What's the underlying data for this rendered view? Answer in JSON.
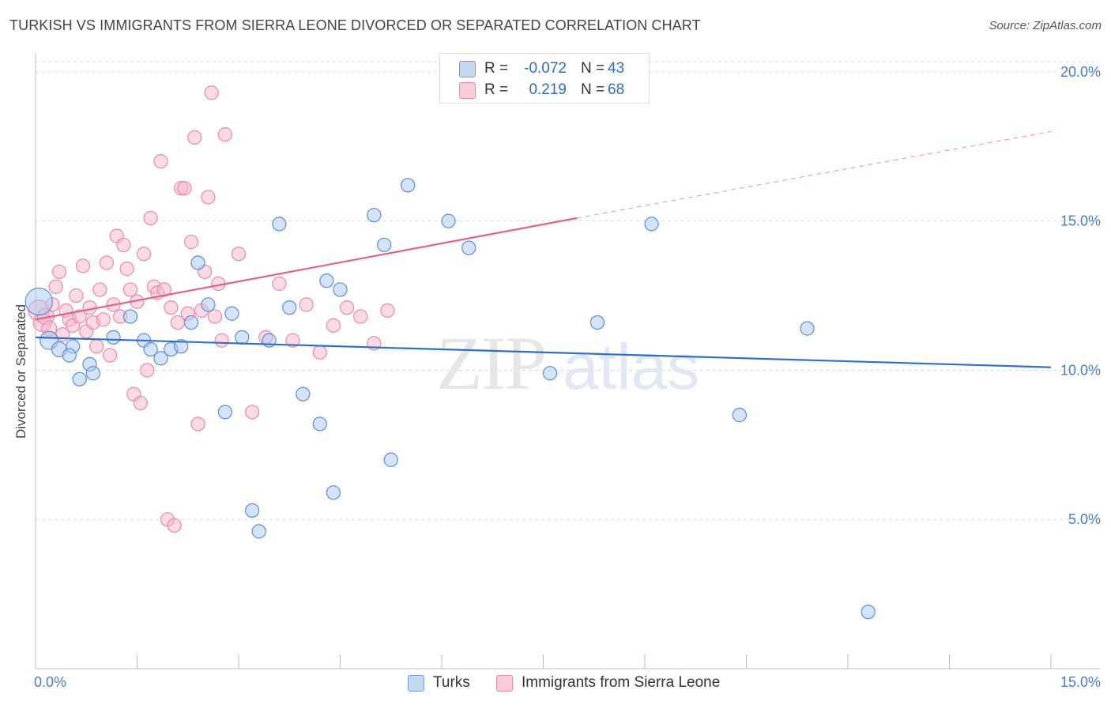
{
  "title": "TURKISH VS IMMIGRANTS FROM SIERRA LEONE DIVORCED OR SEPARATED CORRELATION CHART",
  "source": "Source: ZipAtlas.com",
  "watermark": {
    "zip": "ZIP",
    "atlas": "atlas"
  },
  "colors": {
    "turks_fill": "#a9c8ef",
    "turks_stroke": "#5b8fd6",
    "turks_line": "#2f6fc9",
    "sl_fill": "#f6b6cb",
    "sl_stroke": "#e98aa9",
    "sl_line": "#e0628f",
    "axis_text": "#4a7cc7",
    "grid": "#d9d9d9"
  },
  "legend": {
    "rows": [
      {
        "r_label": "R =",
        "r_value": "-0.072",
        "n_label": "N =",
        "n_value": "43"
      },
      {
        "r_label": "R =",
        "r_value": "0.219",
        "n_label": "N =",
        "n_value": "68"
      }
    ]
  },
  "chart_data": {
    "type": "scatter",
    "title": "TURKISH VS IMMIGRANTS FROM SIERRA LEONE DIVORCED OR SEPARATED CORRELATION CHART",
    "xlabel": "",
    "ylabel": "Divorced or Separated",
    "xlim": [
      0,
      15
    ],
    "ylim": [
      0,
      20.5
    ],
    "x_tick_labels": [
      "0.0%",
      "15.0%"
    ],
    "y_ticks": [
      5,
      10,
      15,
      20
    ],
    "y_tick_labels": [
      "5.0%",
      "10.0%",
      "15.0%",
      "20.0%"
    ],
    "grid": true,
    "series": [
      {
        "name": "Turks",
        "trend": {
          "x0": 0.0,
          "y0": 11.1,
          "x1": 15.0,
          "y1": 10.1,
          "dashed_after": null
        },
        "points": [
          [
            0.05,
            12.3,
            18
          ],
          [
            0.2,
            11.0,
            12
          ],
          [
            0.35,
            10.7,
            10
          ],
          [
            0.55,
            10.8,
            9
          ],
          [
            0.5,
            10.5,
            9
          ],
          [
            0.65,
            9.7,
            9
          ],
          [
            0.8,
            10.2,
            9
          ],
          [
            1.15,
            11.1,
            9
          ],
          [
            1.4,
            11.8,
            9
          ],
          [
            0.85,
            9.9,
            9
          ],
          [
            1.6,
            11.0,
            9
          ],
          [
            1.7,
            10.7,
            9
          ],
          [
            1.85,
            10.4,
            9
          ],
          [
            2.0,
            10.7,
            9
          ],
          [
            2.15,
            10.8,
            9
          ],
          [
            2.3,
            11.6,
            9
          ],
          [
            2.4,
            13.6,
            9
          ],
          [
            2.55,
            12.2,
            9
          ],
          [
            2.8,
            8.6,
            9
          ],
          [
            2.9,
            11.9,
            9
          ],
          [
            3.05,
            11.1,
            9
          ],
          [
            3.2,
            5.3,
            9
          ],
          [
            3.3,
            4.6,
            9
          ],
          [
            3.45,
            11.0,
            9
          ],
          [
            3.6,
            14.9,
            9
          ],
          [
            3.75,
            12.1,
            9
          ],
          [
            3.95,
            9.2,
            9
          ],
          [
            4.2,
            8.2,
            9
          ],
          [
            4.3,
            13.0,
            9
          ],
          [
            4.4,
            5.9,
            9
          ],
          [
            4.5,
            12.7,
            9
          ],
          [
            5.0,
            15.2,
            9
          ],
          [
            5.15,
            14.2,
            9
          ],
          [
            5.25,
            7.0,
            9
          ],
          [
            5.5,
            16.2,
            9
          ],
          [
            6.1,
            15.0,
            9
          ],
          [
            6.4,
            14.1,
            9
          ],
          [
            7.6,
            9.9,
            9
          ],
          [
            8.3,
            11.6,
            9
          ],
          [
            9.1,
            14.9,
            9
          ],
          [
            10.4,
            8.5,
            9
          ],
          [
            11.4,
            11.4,
            9
          ],
          [
            12.3,
            1.9,
            9
          ]
        ]
      },
      {
        "name": "Immigrants from Sierra Leone",
        "trend": {
          "x0": 0.0,
          "y0": 11.7,
          "x1": 8.0,
          "y1": 15.1,
          "dashed_after": 8.0,
          "x2": 15.0,
          "y2": 18.0
        },
        "points": [
          [
            0.05,
            12.0,
            14
          ],
          [
            0.1,
            11.6,
            12
          ],
          [
            0.15,
            11.8,
            11
          ],
          [
            0.2,
            11.4,
            10
          ],
          [
            0.25,
            12.2,
            9
          ],
          [
            0.3,
            12.8,
            9
          ],
          [
            0.35,
            13.3,
            9
          ],
          [
            0.4,
            11.2,
            9
          ],
          [
            0.45,
            12.0,
            9
          ],
          [
            0.5,
            11.7,
            9
          ],
          [
            0.55,
            11.5,
            9
          ],
          [
            0.6,
            12.5,
            9
          ],
          [
            0.65,
            11.8,
            9
          ],
          [
            0.7,
            13.5,
            9
          ],
          [
            0.75,
            11.3,
            9
          ],
          [
            0.8,
            12.1,
            9
          ],
          [
            0.85,
            11.6,
            9
          ],
          [
            0.9,
            10.8,
            9
          ],
          [
            0.95,
            12.7,
            9
          ],
          [
            1.0,
            11.7,
            9
          ],
          [
            1.05,
            13.6,
            9
          ],
          [
            1.1,
            10.5,
            9
          ],
          [
            1.15,
            12.2,
            9
          ],
          [
            1.2,
            14.5,
            9
          ],
          [
            1.25,
            11.8,
            9
          ],
          [
            1.3,
            14.2,
            9
          ],
          [
            1.35,
            13.4,
            9
          ],
          [
            1.4,
            12.7,
            9
          ],
          [
            1.45,
            9.2,
            9
          ],
          [
            1.5,
            12.3,
            9
          ],
          [
            1.55,
            8.9,
            9
          ],
          [
            1.6,
            13.9,
            9
          ],
          [
            1.65,
            10.0,
            9
          ],
          [
            1.7,
            15.1,
            9
          ],
          [
            1.75,
            12.8,
            9
          ],
          [
            1.8,
            12.6,
            9
          ],
          [
            1.85,
            17.0,
            9
          ],
          [
            1.9,
            12.7,
            9
          ],
          [
            1.95,
            5.0,
            9
          ],
          [
            2.0,
            12.1,
            9
          ],
          [
            2.05,
            4.8,
            9
          ],
          [
            2.1,
            11.6,
            9
          ],
          [
            2.15,
            16.1,
            9
          ],
          [
            2.2,
            16.1,
            9
          ],
          [
            2.25,
            11.9,
            9
          ],
          [
            2.3,
            14.3,
            9
          ],
          [
            2.35,
            17.8,
            9
          ],
          [
            2.4,
            8.2,
            9
          ],
          [
            2.45,
            12.0,
            9
          ],
          [
            2.5,
            13.3,
            9
          ],
          [
            2.55,
            15.8,
            9
          ],
          [
            2.6,
            19.3,
            9
          ],
          [
            2.65,
            11.8,
            9
          ],
          [
            2.7,
            12.9,
            9
          ],
          [
            2.75,
            11.0,
            9
          ],
          [
            2.8,
            17.9,
            9
          ],
          [
            3.0,
            13.9,
            9
          ],
          [
            3.2,
            8.6,
            9
          ],
          [
            3.4,
            11.1,
            9
          ],
          [
            3.6,
            12.9,
            9
          ],
          [
            3.8,
            11.0,
            9
          ],
          [
            4.0,
            12.2,
            9
          ],
          [
            4.2,
            10.6,
            9
          ],
          [
            4.4,
            11.5,
            9
          ],
          [
            4.6,
            12.1,
            9
          ],
          [
            4.8,
            11.8,
            9
          ],
          [
            5.0,
            10.9,
            9
          ],
          [
            5.2,
            12.0,
            9
          ]
        ]
      }
    ]
  }
}
